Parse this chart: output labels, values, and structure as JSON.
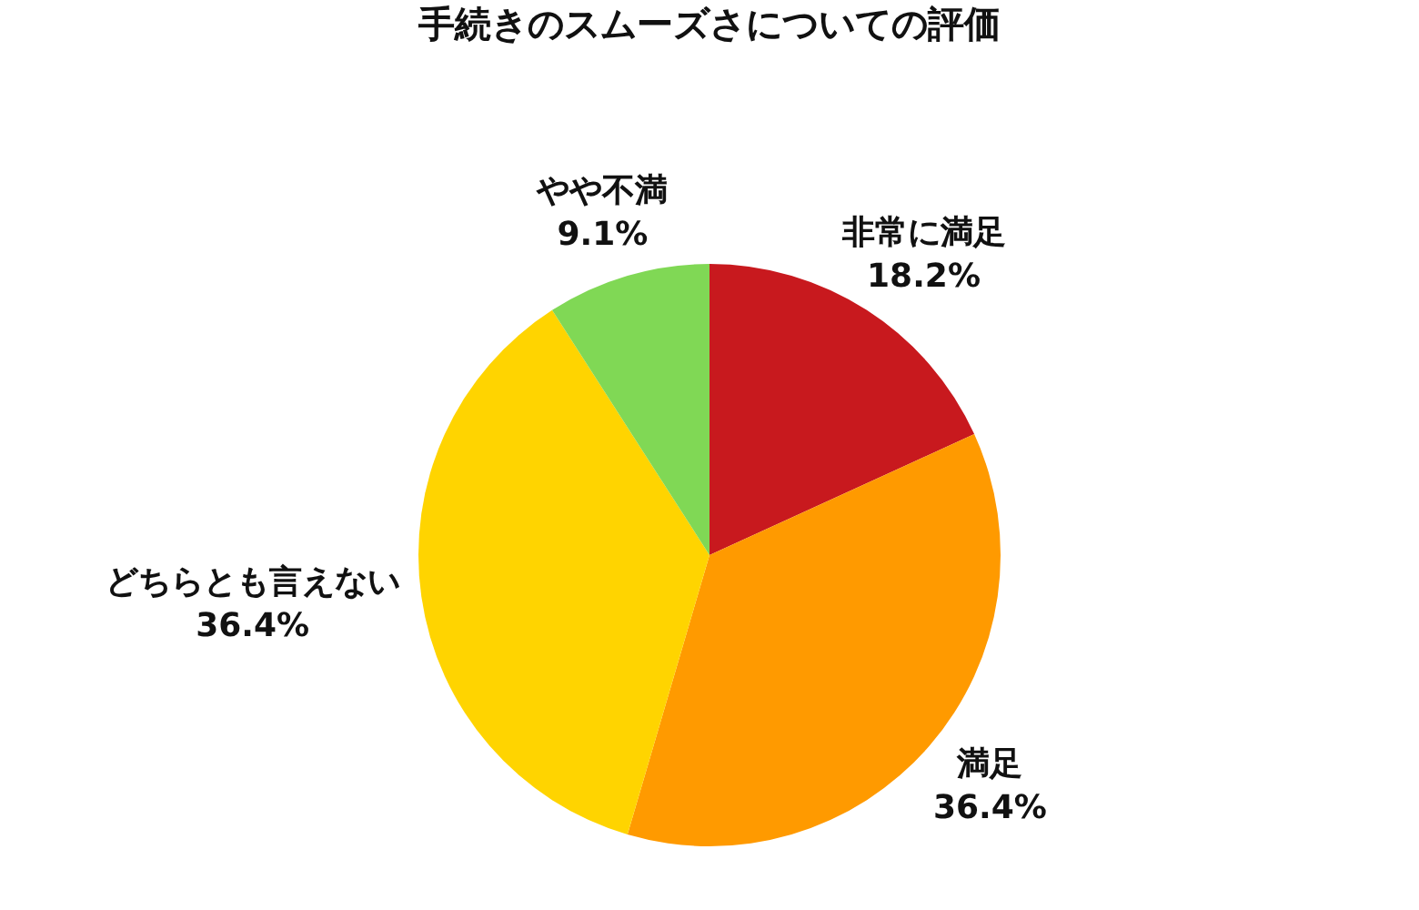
{
  "chart_data": {
    "type": "pie",
    "title": "手続きのスムーズさについての評価",
    "categories": [
      "非常に満足",
      "満足",
      "どちらとも言えない",
      "やや不満"
    ],
    "values": [
      18.2,
      36.4,
      36.4,
      9.1
    ],
    "value_labels": [
      "18.2%",
      "36.4%",
      "36.4%",
      "9.1%"
    ],
    "colors": [
      "#c8191e",
      "#ff9a00",
      "#ffd400",
      "#80d855"
    ],
    "legend": false
  }
}
